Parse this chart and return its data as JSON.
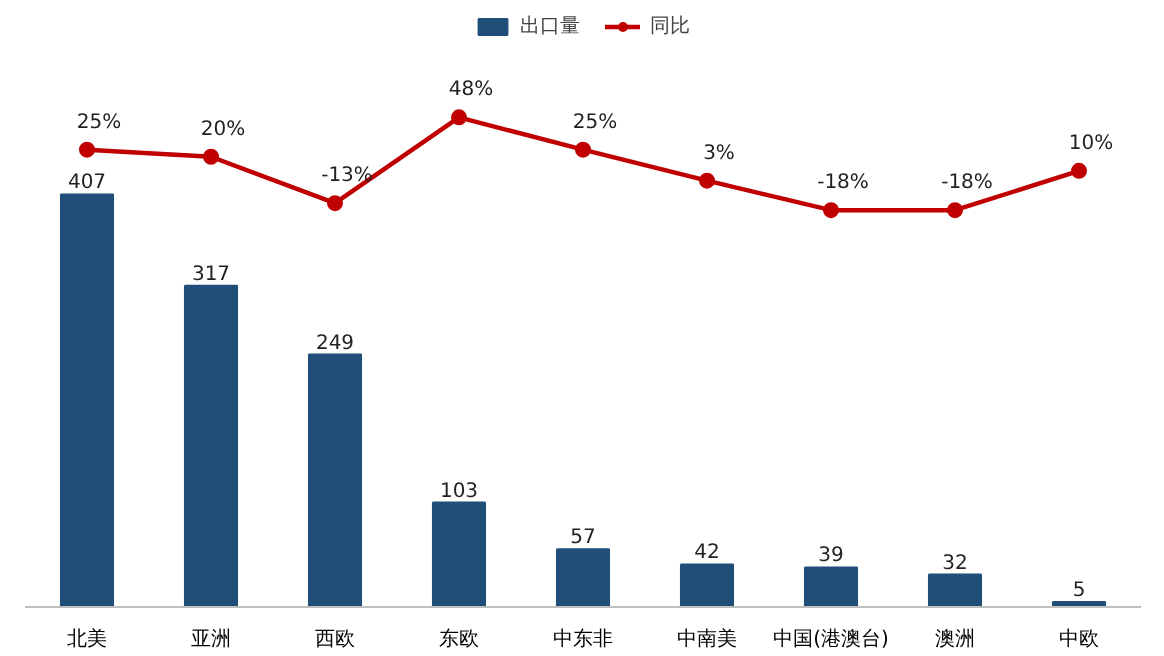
{
  "chart_data": {
    "type": "bar",
    "categories": [
      "北美",
      "亚洲",
      "西欧",
      "东欧",
      "中东非",
      "中南美",
      "中国(港澳台)",
      "澳洲",
      "中欧"
    ],
    "series": [
      {
        "name": "出口量",
        "color": "#1f4e79",
        "values": [
          407,
          317,
          249,
          103,
          57,
          42,
          39,
          32,
          5
        ]
      },
      {
        "name": "同比",
        "type": "line",
        "axis": "y2",
        "color": "#c00000",
        "marker": "circle",
        "values": [
          25,
          20,
          -13,
          48,
          25,
          3,
          -18,
          -18,
          10
        ],
        "value_labels": [
          "25%",
          "20%",
          "-13%",
          "48%",
          "25%",
          "3%",
          "-18%",
          "-18%",
          "10%"
        ]
      }
    ],
    "ylim": [
      0,
      590
    ],
    "y2lim": [
      -300,
      125
    ],
    "data_labels": true,
    "legend": "top",
    "grid": false,
    "tick_labels": "x"
  }
}
